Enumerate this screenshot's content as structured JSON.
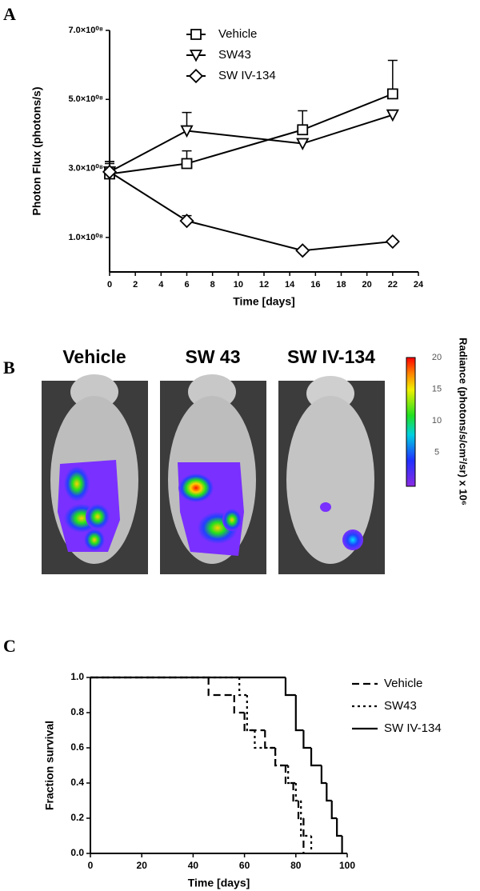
{
  "panel_labels": [
    "A",
    "B",
    "C"
  ],
  "chart_data": [
    {
      "type": "line",
      "x": [
        0,
        6,
        15,
        22
      ],
      "xlabel": "Time [days]",
      "ylabel": "Photon Flux (photons/s)",
      "xlim": [
        0,
        24
      ],
      "xticks": [
        0,
        2,
        4,
        6,
        8,
        10,
        12,
        14,
        16,
        18,
        20,
        22,
        24
      ],
      "ylim": [
        0,
        700000000
      ],
      "yticks": [
        {
          "value": 100000000,
          "label": "1.0×10⁰⁸"
        },
        {
          "value": 300000000,
          "label": "3.0×10⁰⁸"
        },
        {
          "value": 500000000,
          "label": "5.0×10⁰⁸"
        },
        {
          "value": 700000000,
          "label": "7.0×10⁰⁸"
        }
      ],
      "legend": "top",
      "series": [
        {
          "name": "Vehicle",
          "marker": "square",
          "color": "#000000",
          "values": [
            284000000,
            314000000,
            412000000,
            516000000
          ],
          "errors": [
            30000000,
            37000000,
            55000000,
            97000000
          ]
        },
        {
          "name": "SW43",
          "marker": "triangle-down",
          "color": "#000000",
          "values": [
            290000000,
            409000000,
            372000000,
            455000000
          ],
          "errors": [
            30000000,
            53000000,
            10000000,
            10000000
          ]
        },
        {
          "name": "SW IV-134",
          "marker": "diamond",
          "color": "#000000",
          "values": [
            290000000,
            148000000,
            62000000,
            88000000
          ],
          "errors": [
            30000000,
            15000000,
            5000000,
            5000000
          ]
        }
      ]
    },
    {
      "type": "step",
      "xlabel": "Time [days]",
      "ylabel": "Fraction survival",
      "xlim": [
        0,
        100
      ],
      "xticks": [
        0,
        20,
        40,
        60,
        80,
        100
      ],
      "ylim": [
        0,
        1
      ],
      "yticks": [
        {
          "value": 0,
          "label": "0.0"
        },
        0.2,
        0.4,
        0.6,
        0.8,
        {
          "value": 1,
          "label": "1.0"
        }
      ],
      "legend": "right",
      "series": [
        {
          "name": "Vehicle",
          "dash": "dashed",
          "color": "#000000",
          "x": [
            0,
            46,
            56,
            60,
            68,
            72,
            76,
            79,
            81,
            83
          ],
          "values": [
            1,
            0.9,
            0.8,
            0.7,
            0.6,
            0.5,
            0.4,
            0.3,
            0.2,
            0
          ]
        },
        {
          "name": "SW43",
          "dash": "dotted",
          "color": "#000000",
          "x": [
            0,
            58,
            61,
            64,
            72,
            77,
            80,
            82,
            86
          ],
          "values": [
            1,
            0.9,
            0.7,
            0.6,
            0.5,
            0.4,
            0.3,
            0.1,
            0
          ]
        },
        {
          "name": "SW IV-134",
          "dash": "solid",
          "color": "#000000",
          "x": [
            0,
            76,
            80,
            83,
            86,
            90,
            92,
            94,
            96,
            98
          ],
          "values": [
            1,
            0.9,
            0.7,
            0.6,
            0.5,
            0.4,
            0.3,
            0.2,
            0.1,
            0
          ]
        }
      ]
    }
  ],
  "panel_b": {
    "titles": [
      "Vehicle",
      "SW 43",
      "SW IV-134"
    ],
    "colorbar": {
      "label": "Radiance (photons/s/cm²/sr) x 10⁶",
      "lim": [
        0,
        20
      ],
      "ticks": [
        5,
        10,
        15,
        20
      ]
    }
  }
}
